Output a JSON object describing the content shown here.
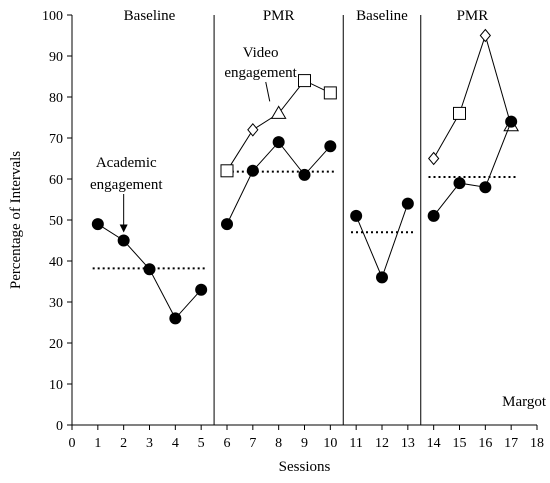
{
  "chart_data": {
    "type": "line",
    "title": "",
    "xlabel": "Sessions",
    "ylabel": "Percentage of Intervals",
    "xlim": [
      0,
      18
    ],
    "ylim": [
      0,
      100
    ],
    "xticks": [
      0,
      1,
      2,
      3,
      4,
      5,
      6,
      7,
      8,
      9,
      10,
      11,
      12,
      13,
      14,
      15,
      16,
      17,
      18
    ],
    "yticks": [
      0,
      10,
      20,
      30,
      40,
      50,
      60,
      70,
      80,
      90,
      100
    ],
    "grid": false,
    "legend": "none",
    "phase_change_lines": [
      5.5,
      10.5,
      13.5
    ],
    "phases": [
      {
        "label": "Baseline",
        "x": 3
      },
      {
        "label": "PMR",
        "x": 8
      },
      {
        "label": "Baseline",
        "x": 12
      },
      {
        "label": "PMR",
        "x": 15.5
      }
    ],
    "participant": "Margot",
    "annotations": [
      {
        "lines": [
          "Academic",
          "engagement"
        ],
        "target": {
          "x": 2,
          "y": 45
        }
      },
      {
        "lines": [
          "Video",
          "engagement"
        ],
        "target": {
          "x": 7.5,
          "y": 76
        }
      }
    ],
    "series": [
      {
        "name": "Academic engagement",
        "marker": "circle",
        "segments": [
          {
            "x": [
              1,
              2,
              3,
              4,
              5
            ],
            "y": [
              49,
              45,
              38,
              26,
              33
            ]
          },
          {
            "x": [
              6,
              7,
              8,
              9,
              10
            ],
            "y": [
              49,
              62,
              69,
              61,
              68
            ]
          },
          {
            "x": [
              11,
              12,
              13
            ],
            "y": [
              51,
              36,
              54
            ]
          },
          {
            "x": [
              14,
              15,
              16,
              17
            ],
            "y": [
              51,
              59,
              58,
              74
            ]
          }
        ]
      },
      {
        "name": "Video engagement",
        "segments": [
          {
            "points": [
              {
                "x": 6,
                "y": 62,
                "marker": "square"
              },
              {
                "x": 7,
                "y": 72,
                "marker": "diamond"
              },
              {
                "x": 8,
                "y": 76,
                "marker": "triangle"
              },
              {
                "x": 9,
                "y": 84,
                "marker": "square"
              },
              {
                "x": 10,
                "y": 81,
                "marker": "square"
              }
            ]
          },
          {
            "points": [
              {
                "x": 14,
                "y": 65,
                "marker": "diamond"
              },
              {
                "x": 15,
                "y": 76,
                "marker": "square"
              },
              {
                "x": 16,
                "y": 95,
                "marker": "diamond"
              },
              {
                "x": 17,
                "y": 73,
                "marker": "triangle"
              }
            ]
          }
        ]
      }
    ],
    "mean_lines": [
      {
        "x": [
          0.8,
          5.2
        ],
        "y": 38.2
      },
      {
        "x": [
          5.8,
          10.2
        ],
        "y": 61.8
      },
      {
        "x": [
          10.8,
          13.2
        ],
        "y": 47
      },
      {
        "x": [
          13.8,
          17.2
        ],
        "y": 60.5
      }
    ]
  }
}
